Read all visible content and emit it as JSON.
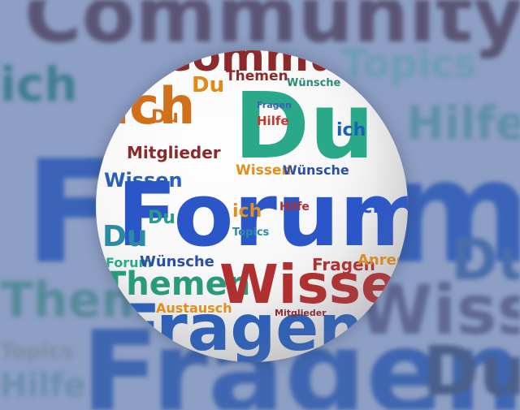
{
  "background_words": [
    {
      "text": "Community",
      "color": "#5a5575"
    },
    {
      "text": "ich",
      "color": "#3f7d92"
    },
    {
      "text": "Hilfe",
      "color": "#5f8fa8"
    },
    {
      "text": "Topics",
      "color": "#6d9eb5"
    },
    {
      "text": "Forum",
      "color": "#3a63b8"
    },
    {
      "text": "Du",
      "color": "#4a6eaa"
    },
    {
      "text": "Themen",
      "color": "#558a9a"
    },
    {
      "text": "Wissen",
      "color": "#5f6893"
    },
    {
      "text": "Fragen",
      "color": "#3f66b0"
    },
    {
      "text": "Du",
      "color": "#4a5f8a"
    },
    {
      "text": "Hilfe",
      "color": "#6c8fae"
    },
    {
      "text": "Topics",
      "color": "#7a8fa5"
    }
  ],
  "sphere_words": [
    {
      "text": "Community",
      "color": "#8a2a2a"
    },
    {
      "text": "Du",
      "color": "#e08a1a"
    },
    {
      "text": "Themen",
      "color": "#8a2a2a"
    },
    {
      "text": "Fragen",
      "color": "#3a5fb8"
    },
    {
      "text": "Wünsche",
      "color": "#2a8a7a"
    },
    {
      "text": "Hilfe",
      "color": "#c0392b"
    },
    {
      "text": "ich",
      "color": "#d0701a"
    },
    {
      "text": "Du",
      "color": "#2aa88a"
    },
    {
      "text": "Du",
      "color": "#d0701a"
    },
    {
      "text": "Mitglieder",
      "color": "#8a2a2a"
    },
    {
      "text": "Wissen",
      "color": "#2a5fb8"
    },
    {
      "text": "Wünsche",
      "color": "#2a4fa8"
    },
    {
      "text": "Wissen",
      "color": "#e0901a"
    },
    {
      "text": "ich",
      "color": "#1a5fb8"
    },
    {
      "text": "Forum",
      "color": "#2a56c8"
    },
    {
      "text": "Du",
      "color": "#2a9a8a"
    },
    {
      "text": "ich",
      "color": "#e09020"
    },
    {
      "text": "Du",
      "color": "#2a8aa8"
    },
    {
      "text": "Forum",
      "color": "#2aa88a"
    },
    {
      "text": "Wünsche",
      "color": "#2a4fa8"
    },
    {
      "text": "Fragen",
      "color": "#b03030"
    },
    {
      "text": "Themen",
      "color": "#2a9a7a"
    },
    {
      "text": "Wissen",
      "color": "#b03030"
    },
    {
      "text": "Austausch",
      "color": "#e0901a"
    },
    {
      "text": "Fragen",
      "color": "#2a5fb8"
    },
    {
      "text": "ich",
      "color": "#2a56c8"
    },
    {
      "text": "Hilfe",
      "color": "#b03030"
    },
    {
      "text": "Topics",
      "color": "#2a8aa8"
    },
    {
      "text": "Anregungen",
      "color": "#e0901a"
    },
    {
      "text": "Mitglieder",
      "color": "#8a2a2a"
    }
  ]
}
